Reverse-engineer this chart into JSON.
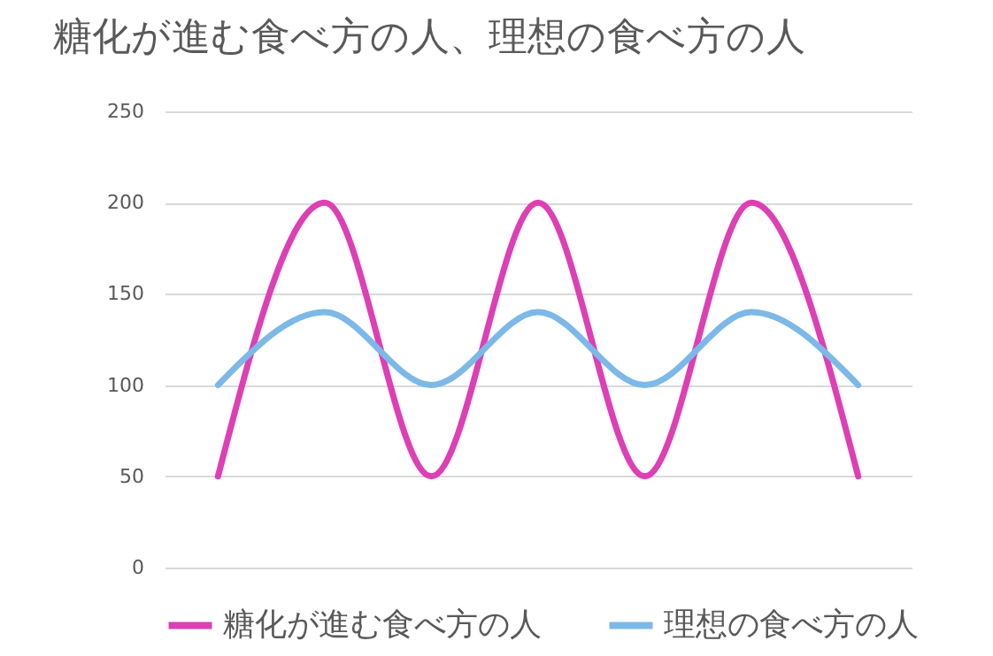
{
  "chart_data": {
    "type": "line",
    "title": "糖化が進む食べ方の人、理想の食べ方の人",
    "categories": [
      null,
      null,
      null,
      null,
      null,
      null,
      null
    ],
    "series": [
      {
        "name": "糖化が進む食べ方の人",
        "color": "#dd3fb5",
        "values": [
          50,
          200,
          50,
          200,
          50,
          200,
          50
        ]
      },
      {
        "name": "理想の食べ方の人",
        "color": "#7cb9e8",
        "values": [
          100,
          140,
          100,
          140,
          100,
          140,
          100
        ]
      }
    ],
    "ylim": [
      0,
      250
    ],
    "yticks": [
      0,
      50,
      100,
      150,
      200,
      250
    ],
    "grid": "y",
    "legend": "bottom",
    "tick_labels": "y",
    "marker": "none",
    "line_style": "solid"
  }
}
